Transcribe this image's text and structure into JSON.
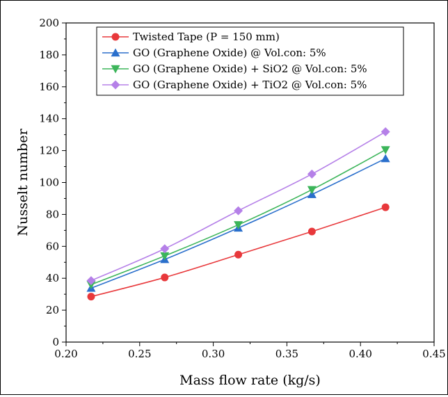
{
  "chart_data": {
    "type": "line",
    "title": "",
    "xlabel": "Mass flow rate (kg/s)",
    "ylabel": "Nusselt number",
    "xlim": [
      0.2,
      0.45
    ],
    "ylim": [
      0,
      200
    ],
    "xticks": [
      "0.20",
      "0.25",
      "0.30",
      "0.35",
      "0.40",
      "0.45"
    ],
    "yticks": [
      "0",
      "20",
      "40",
      "60",
      "80",
      "100",
      "120",
      "140",
      "160",
      "180",
      "200"
    ],
    "grid": false,
    "legend_position": "top-left",
    "x": [
      0.217,
      0.267,
      0.317,
      0.367,
      0.417
    ],
    "series": [
      {
        "name": "Twisted Tape (P = 150 mm)",
        "values": [
          28.5,
          40.5,
          54.8,
          69.3,
          84.5
        ],
        "color": "#e8383b",
        "marker": "circle"
      },
      {
        "name": "GO (Graphene Oxide) @ Vol.con: 5%",
        "values": [
          33.8,
          51.8,
          71.5,
          92.5,
          115
        ],
        "color": "#2a6fcc",
        "marker": "triangle-up"
      },
      {
        "name": "GO (Graphene Oxide) + SiO2 @ Vol.con: 5%",
        "values": [
          36,
          54,
          73.5,
          95.5,
          120.5
        ],
        "color": "#3cb55a",
        "marker": "triangle-down"
      },
      {
        "name": "GO (Graphene Oxide) + TiO2 @ Vol.con: 5%",
        "values": [
          38.5,
          58.5,
          82.3,
          105.3,
          131.8
        ],
        "color": "#b580e8",
        "marker": "diamond"
      }
    ]
  }
}
